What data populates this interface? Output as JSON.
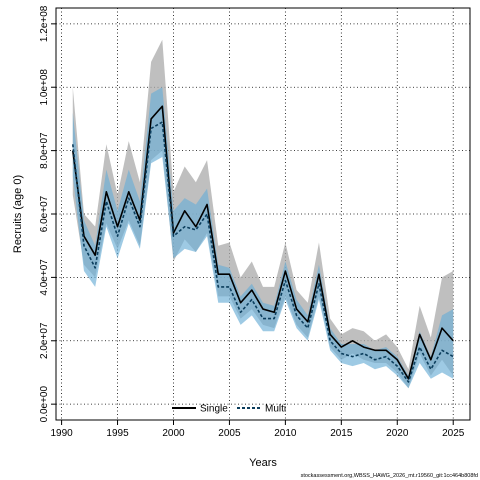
{
  "chart_data": {
    "type": "line",
    "xlabel": "Years",
    "ylabel": "Recruits (age 0)",
    "xlim": [
      1989.5,
      2026.5
    ],
    "ylim": [
      -5000000,
      125000000
    ],
    "x_ticks": [
      1990,
      1995,
      2000,
      2005,
      2010,
      2015,
      2020,
      2025
    ],
    "x_tick_labels": [
      "1990",
      "1995",
      "2000",
      "2005",
      "2010",
      "2015",
      "2020",
      "2025"
    ],
    "y_ticks": [
      0,
      20000000,
      40000000,
      60000000,
      80000000,
      100000000,
      120000000
    ],
    "y_tick_labels": [
      "0.0e+00",
      "2.0e+07",
      "4.0e+07",
      "6.0e+07",
      "8.0e+07",
      "1.0e+08",
      "1.2e+08"
    ],
    "grid": true,
    "legend_position": "bottom-center",
    "colors": {
      "single_line": "#000000",
      "single_band": "#a9a9a9",
      "multi_line": "#0b3d5c",
      "multi_band": "#6aaed6"
    },
    "series": [
      {
        "name": "Single",
        "style": "solid",
        "x": [
          1991,
          1992,
          1993,
          1994,
          1995,
          1996,
          1997,
          1998,
          1999,
          2000,
          2001,
          2002,
          2003,
          2004,
          2005,
          2006,
          2007,
          2008,
          2009,
          2010,
          2011,
          2012,
          2013,
          2014,
          2015,
          2016,
          2017,
          2018,
          2019,
          2020,
          2021,
          2022,
          2023,
          2024,
          2025
        ],
        "y": [
          80000000,
          53000000,
          47000000,
          67000000,
          56000000,
          67000000,
          58000000,
          90000000,
          94000000,
          54000000,
          61000000,
          56000000,
          63000000,
          41000000,
          41000000,
          32000000,
          36000000,
          30000000,
          29000000,
          42000000,
          30000000,
          26000000,
          41000000,
          22000000,
          18000000,
          20000000,
          18000000,
          17000000,
          17000000,
          14000000,
          8000000,
          22000000,
          14000000,
          24000000,
          20000000
        ],
        "lower": [
          66000000,
          44000000,
          40000000,
          57000000,
          49000000,
          58000000,
          50000000,
          77000000,
          80000000,
          45000000,
          52000000,
          48000000,
          54000000,
          34000000,
          34000000,
          27000000,
          30000000,
          25000000,
          24000000,
          34000000,
          25000000,
          21000000,
          34000000,
          18000000,
          14000000,
          16000000,
          14000000,
          13000000,
          13000000,
          10000000,
          5000000,
          16000000,
          9000000,
          14000000,
          9000000
        ],
        "upper": [
          100000000,
          60000000,
          56000000,
          82000000,
          66000000,
          83000000,
          70000000,
          108000000,
          115000000,
          67000000,
          75000000,
          70000000,
          77000000,
          50000000,
          51000000,
          40000000,
          45000000,
          37000000,
          37000000,
          51000000,
          36000000,
          32000000,
          51000000,
          27000000,
          22000000,
          24000000,
          23000000,
          20000000,
          22000000,
          18000000,
          11000000,
          31000000,
          21000000,
          40000000,
          42000000
        ]
      },
      {
        "name": "Multi",
        "style": "dashed",
        "x": [
          1991,
          1992,
          1993,
          1994,
          1995,
          1996,
          1997,
          1998,
          1999,
          2000,
          2001,
          2002,
          2003,
          2004,
          2005,
          2006,
          2007,
          2008,
          2009,
          2010,
          2011,
          2012,
          2013,
          2014,
          2015,
          2016,
          2017,
          2018,
          2019,
          2020,
          2021,
          2022,
          2023,
          2024,
          2025
        ],
        "y": [
          82000000,
          50000000,
          43000000,
          64000000,
          53000000,
          65000000,
          56000000,
          87000000,
          89000000,
          53000000,
          56000000,
          55000000,
          60000000,
          37000000,
          37000000,
          29000000,
          33000000,
          27000000,
          27000000,
          39000000,
          28000000,
          24000000,
          38000000,
          20000000,
          16000000,
          15000000,
          16000000,
          14000000,
          15000000,
          12000000,
          7000000,
          18000000,
          11000000,
          17000000,
          15000000
        ],
        "lower": [
          72000000,
          42000000,
          37000000,
          56000000,
          46000000,
          57000000,
          49000000,
          76000000,
          78000000,
          46000000,
          49000000,
          48000000,
          53000000,
          32000000,
          32000000,
          25000000,
          28000000,
          23000000,
          23000000,
          33000000,
          24000000,
          20000000,
          33000000,
          17000000,
          13000000,
          12000000,
          13000000,
          11000000,
          12000000,
          9000000,
          5000000,
          13000000,
          8000000,
          10000000,
          8000000
        ],
        "upper": [
          92000000,
          58000000,
          50000000,
          74000000,
          61000000,
          74000000,
          64000000,
          98000000,
          100000000,
          61000000,
          65000000,
          63000000,
          68000000,
          44000000,
          43000000,
          34000000,
          38000000,
          32000000,
          31000000,
          45000000,
          33000000,
          28000000,
          44000000,
          24000000,
          19000000,
          19000000,
          19000000,
          17000000,
          18000000,
          15000000,
          9000000,
          23000000,
          15000000,
          28000000,
          30000000
        ]
      }
    ]
  },
  "footer": {
    "source_text": "stockassessment.org,WBSS_HAWG_2026_mt.r19560_git:1cc464b808fd"
  }
}
